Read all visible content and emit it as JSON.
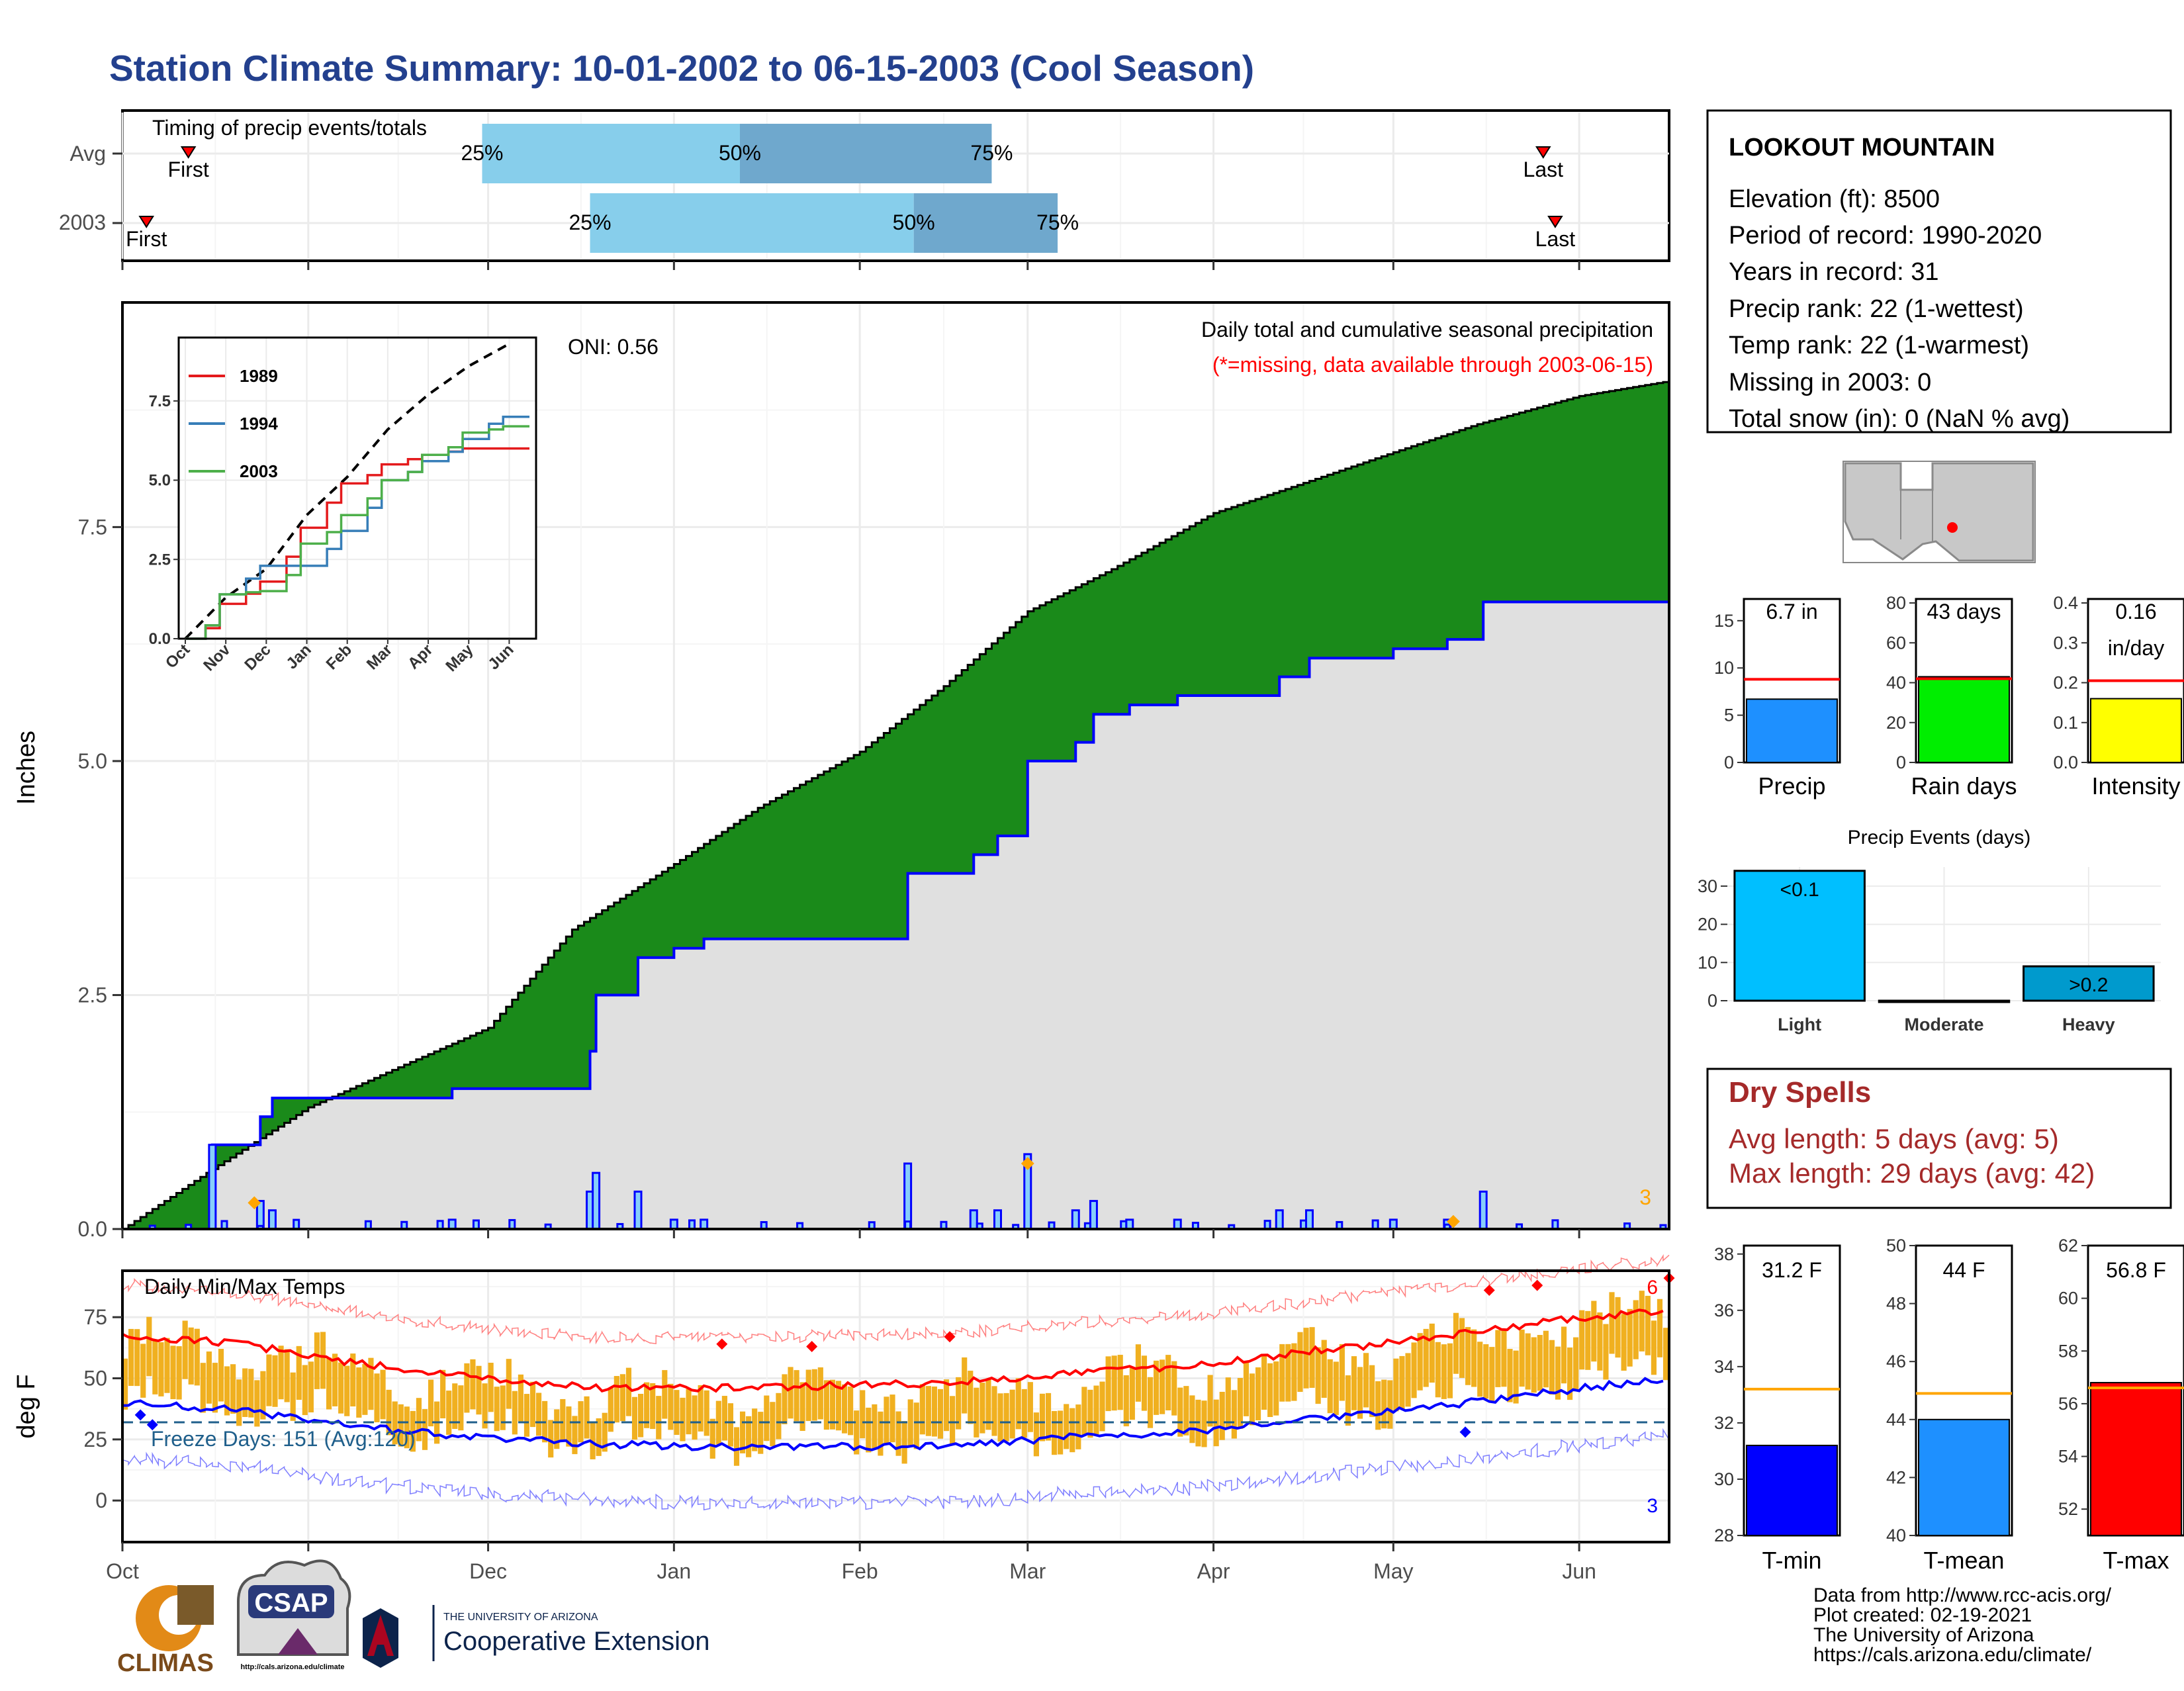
{
  "title": "Station Climate Summary: 10-01-2002 to 06-15-2003 (Cool Season)",
  "colors": {
    "title": "#23408e",
    "q1": "#87ceeb",
    "q2": "#6fa8cd",
    "cum_avg": "#8b5a00",
    "cum_obs_fill": "#e0e0e0",
    "obs_line": "#0000ff",
    "green": "#1a8a1a",
    "orange": "#ffa500",
    "temp_bar": "#f0b020",
    "red": "#ff0000",
    "blue": "#0000ff",
    "dry_red": "#a52a2a",
    "precip_blue": "#1e90ff",
    "rain_green": "#00ee00",
    "intensity_yellow": "#ffff00",
    "light_cyan": "#00bfff",
    "heavy_teal": "#009acd",
    "freeze_dash": "#1f5f8b"
  },
  "timing": {
    "label": "Timing of precip events/totals",
    "rows": [
      {
        "label": "Avg",
        "first": "2002-10-12",
        "p25": "2002-11-30",
        "p50": "2003-01-12",
        "p75": "2003-02-23",
        "last": "2003-05-26",
        "first_label": "First",
        "last_label": "Last",
        "p25_label": "25%",
        "p50_label": "50%",
        "p75_label": "75%"
      },
      {
        "label": "2003",
        "first": "2002-10-05",
        "p25": "2002-12-18",
        "p50": "2003-02-10",
        "p75": "2003-03-06",
        "last": "2003-05-28",
        "first_label": "First",
        "last_label": "Last",
        "p25_label": "25%",
        "p50_label": "50%",
        "p75_label": "75%"
      }
    ]
  },
  "precip": {
    "ylabel": "Inches",
    "ylim": [
      0,
      9.9
    ],
    "yticks": [
      "0.0",
      "2.5",
      "5.0",
      "7.5"
    ],
    "ytick_values": [
      0,
      2.5,
      5,
      7.5
    ],
    "oni": "ONI: 0.56",
    "subtitle": "Daily total and cumulative seasonal precipitation",
    "missing_note": "(*=missing, data available through 2003-06-15)",
    "corner_count": "3"
  },
  "inset": {
    "yticks": [
      "0.0",
      "2.5",
      "5.0",
      "7.5"
    ],
    "ytick_values": [
      0,
      2.5,
      5,
      7.5
    ],
    "ylim": [
      0,
      9.5
    ],
    "months": [
      "Oct",
      "Nov",
      "Dec",
      "Jan",
      "Feb",
      "Mar",
      "Apr",
      "May",
      "Jun"
    ],
    "legend": [
      {
        "label": "1989",
        "color": "#e41a1c"
      },
      {
        "label": "1994",
        "color": "#377eb8"
      },
      {
        "label": "2003",
        "color": "#4daf4a"
      }
    ]
  },
  "temps": {
    "ylabel": "deg F",
    "title": "Daily Min/Max Temps",
    "yticks": [
      "0",
      "25",
      "50",
      "75"
    ],
    "ytick_values": [
      0,
      25,
      50,
      75
    ],
    "ylim": [
      -17,
      94
    ],
    "freeze_label": "Freeze Days: 151 (Avg:120)",
    "freeze_level": 32,
    "hi_count": "6",
    "lo_count": "3"
  },
  "x_axis": {
    "start": "2002-10-01",
    "end": "2003-06-15",
    "months": [
      {
        "label": "Oct",
        "date": "2002-10-01"
      },
      {
        "label": "Nov",
        "date": "2002-11-01"
      },
      {
        "label": "Dec",
        "date": "2002-12-01"
      },
      {
        "label": "Jan",
        "date": "2003-01-01"
      },
      {
        "label": "Feb",
        "date": "2003-02-01"
      },
      {
        "label": "Mar",
        "date": "2003-03-01"
      },
      {
        "label": "Apr",
        "date": "2003-04-01"
      },
      {
        "label": "May",
        "date": "2003-05-01"
      },
      {
        "label": "Jun",
        "date": "2003-06-01"
      }
    ]
  },
  "station": {
    "name": "LOOKOUT MOUNTAIN",
    "lines": [
      "Elevation (ft): 8500",
      "Period of record: 1990-2020",
      "Years in record: 31",
      "Precip rank: 22 (1-wettest)",
      "Temp rank: 22 (1-warmest)",
      "Missing in 2003: 0",
      "Total snow (in): 0 (NaN % avg)"
    ]
  },
  "small_bars": [
    {
      "label": "Precip",
      "value": 6.7,
      "value_text": "6.7 in",
      "avg": 8.8,
      "ymax": 17.3,
      "yticks": [
        0,
        5,
        10,
        15
      ],
      "ytick_labels": [
        "0",
        "5",
        "10",
        "15"
      ],
      "color": "#1e90ff"
    },
    {
      "label": "Rain days",
      "value": 43,
      "value_text": "43 days",
      "avg": 42,
      "ymax": 82,
      "yticks": [
        0,
        20,
        40,
        60,
        80
      ],
      "ytick_labels": [
        "0",
        "20",
        "40",
        "60",
        "80"
      ],
      "color": "#00ee00"
    },
    {
      "label": "Intensity",
      "value": 0.16,
      "value_text": "0.16",
      "value_text2": "in/day",
      "avg": 0.205,
      "ymax": 0.41,
      "yticks": [
        0,
        0.1,
        0.2,
        0.3,
        0.4
      ],
      "ytick_labels": [
        "0.0",
        "0.1",
        "0.2",
        "0.3",
        "0.4"
      ],
      "color": "#ffff00"
    }
  ],
  "events": {
    "title": "Precip Events (days)",
    "categories": [
      "Light",
      "Moderate",
      "Heavy"
    ],
    "values": [
      34,
      0,
      9
    ],
    "value_labels": [
      "<0.1",
      "",
      ">0.2"
    ],
    "colors": [
      "#00bfff",
      "#00bfff",
      "#009acd"
    ],
    "ylim": [
      0,
      35
    ],
    "yticks": [
      0,
      10,
      20,
      30
    ],
    "ytick_labels": [
      "0",
      "10",
      "20",
      "30"
    ]
  },
  "dry_spells": {
    "title": "Dry Spells",
    "avg_line": "Avg length: 5 days (avg: 5)",
    "max_line": "Max length: 29 days (avg: 42)"
  },
  "temp_bars": [
    {
      "label": "T-min",
      "value": 31.2,
      "value_text": "31.2 F",
      "avg": 33.2,
      "ymin": 28,
      "ymax": 38.3,
      "yticks": [
        28,
        30,
        32,
        34,
        36,
        38
      ],
      "ytick_labels": [
        "28",
        "30",
        "32",
        "34",
        "36",
        "38"
      ],
      "color": "#0000ff"
    },
    {
      "label": "T-mean",
      "value": 44,
      "value_text": "44 F",
      "avg": 44.9,
      "ymin": 40,
      "ymax": 50,
      "yticks": [
        40,
        42,
        44,
        46,
        48,
        50
      ],
      "ytick_labels": [
        "40",
        "42",
        "44",
        "46",
        "48",
        "50"
      ],
      "color": "#1e90ff"
    },
    {
      "label": "T-max",
      "value": 56.8,
      "value_text": "56.8 F",
      "avg": 56.6,
      "ymin": 51,
      "ymax": 62,
      "yticks": [
        52,
        54,
        56,
        58,
        60,
        62
      ],
      "ytick_labels": [
        "52",
        "54",
        "56",
        "58",
        "60",
        "62"
      ],
      "color": "#ff0000"
    }
  ],
  "logos": {
    "climas": "CLIMAS",
    "csap": "CSAP",
    "csap_url": "http://cals.arizona.edu/climate",
    "ua_line1": "THE UNIVERSITY OF ARIZONA",
    "ua_line2": "Cooperative Extension"
  },
  "footer": [
    "Data from http://www.rcc-acis.org/",
    "Plot created: 02-19-2021",
    "The University of Arizona",
    "https://cals.arizona.edu/climate/"
  ],
  "chart_data": [
    {
      "type": "bar",
      "id": "timing",
      "title": "Timing of precip events/totals",
      "categories": [
        "Avg",
        "2003"
      ],
      "series": [
        {
          "name": "First",
          "values": [
            "2002-10-12",
            "2002-10-05"
          ]
        },
        {
          "name": "25%",
          "values": [
            "2002-11-30",
            "2002-12-18"
          ]
        },
        {
          "name": "50%",
          "values": [
            "2003-01-12",
            "2003-02-10"
          ]
        },
        {
          "name": "75%",
          "values": [
            "2003-02-23",
            "2003-03-06"
          ]
        },
        {
          "name": "Last",
          "values": [
            "2003-05-26",
            "2003-05-28"
          ]
        }
      ]
    },
    {
      "type": "area",
      "id": "precip_main",
      "title": "Daily total and cumulative seasonal precipitation",
      "ylabel": "Inches",
      "ylim": [
        0,
        9.9
      ],
      "series": [
        {
          "name": "avg",
          "x": [
            "2002-10-01",
            "2002-10-15",
            "2002-11-01",
            "2002-11-15",
            "2002-12-01",
            "2002-12-15",
            "2003-01-01",
            "2003-01-15",
            "2003-02-01",
            "2003-02-15",
            "2003-03-01",
            "2003-03-15",
            "2003-04-01",
            "2003-04-15",
            "2003-05-01",
            "2003-05-15",
            "2003-06-01",
            "2003-06-15"
          ],
          "values": [
            0,
            0.6,
            1.3,
            1.7,
            2.15,
            3.2,
            3.9,
            4.5,
            5.1,
            5.8,
            6.6,
            7.05,
            7.65,
            7.95,
            8.3,
            8.6,
            8.9,
            9.05
          ]
        },
        {
          "name": "2003",
          "x": [
            "2002-10-01",
            "2002-10-16",
            "2002-10-24",
            "2002-10-26",
            "2002-11-01",
            "2002-11-25",
            "2002-12-16",
            "2002-12-18",
            "2002-12-19",
            "2002-12-26",
            "2003-01-01",
            "2003-01-06",
            "2003-02-09",
            "2003-02-20",
            "2003-02-24",
            "2003-03-01",
            "2003-03-09",
            "2003-03-12",
            "2003-03-18",
            "2003-03-26",
            "2003-04-12",
            "2003-04-17",
            "2003-05-01",
            "2003-05-10",
            "2003-05-16",
            "2003-06-15"
          ],
          "values": [
            0,
            0.9,
            1.2,
            1.4,
            1.4,
            1.5,
            1.5,
            1.9,
            2.5,
            2.9,
            3.0,
            3.1,
            3.8,
            4.0,
            4.2,
            5.0,
            5.2,
            5.5,
            5.6,
            5.7,
            5.9,
            6.1,
            6.2,
            6.3,
            6.7,
            6.7
          ]
        }
      ]
    },
    {
      "type": "line",
      "id": "inset_cumulative",
      "x": [
        "Oct",
        "Nov",
        "Dec",
        "Jan",
        "Feb",
        "Mar",
        "Apr",
        "May",
        "Jun"
      ],
      "series": [
        {
          "name": "avg",
          "values": [
            0,
            1.3,
            2.2,
            3.9,
            5.1,
            6.6,
            7.7,
            8.6,
            9.3
          ]
        },
        {
          "name": "1989",
          "values": [
            0,
            1.1,
            1.8,
            3.5,
            4.9,
            5.5,
            5.8,
            6.0,
            6.0
          ]
        },
        {
          "name": "1994",
          "values": [
            0,
            1.4,
            2.3,
            2.3,
            3.4,
            5.0,
            5.6,
            6.3,
            7.0
          ]
        },
        {
          "name": "2003",
          "values": [
            0,
            1.4,
            1.5,
            3.0,
            3.9,
            5.0,
            5.8,
            6.5,
            6.7
          ]
        }
      ]
    },
    {
      "type": "bar",
      "id": "daily_temps",
      "title": "Daily Min/Max Temps",
      "ylabel": "deg F",
      "series": [
        {
          "name": "avg max",
          "values": [
            68,
            64,
            56,
            50,
            46,
            46,
            47,
            48,
            52,
            55,
            61,
            66,
            73,
            78
          ]
        },
        {
          "name": "avg min",
          "values": [
            40,
            37,
            30,
            26,
            23,
            22,
            22,
            22,
            26,
            28,
            33,
            38,
            44,
            50
          ]
        }
      ]
    },
    {
      "type": "bar",
      "id": "season_precip",
      "categories": [
        "Precip",
        "Rain days",
        "Intensity"
      ],
      "values": [
        6.7,
        43,
        0.16
      ]
    },
    {
      "type": "bar",
      "id": "precip_events",
      "title": "Precip Events (days)",
      "categories": [
        "Light",
        "Moderate",
        "Heavy"
      ],
      "values": [
        34,
        0,
        9
      ]
    },
    {
      "type": "bar",
      "id": "season_temps",
      "categories": [
        "T-min",
        "T-mean",
        "T-max"
      ],
      "values": [
        31.2,
        44,
        56.8
      ]
    }
  ]
}
